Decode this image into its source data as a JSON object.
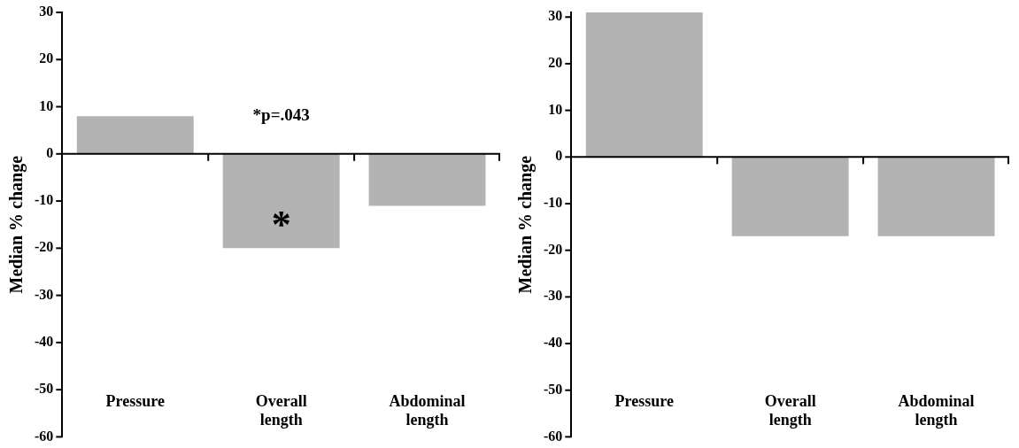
{
  "chart_data": [
    {
      "type": "bar",
      "ylabel": "Median % change",
      "categories": [
        "Pressure",
        "Overall length",
        "Abdominal length"
      ],
      "values": [
        8,
        -20,
        -11
      ],
      "color": "#b3b3b3",
      "ylim": [
        -60,
        30
      ],
      "yticks": [
        -60,
        -50,
        -40,
        -30,
        -20,
        -10,
        0,
        10,
        20,
        30
      ],
      "legend": false,
      "annotations": [
        "*p=.043",
        "*"
      ]
    },
    {
      "type": "bar",
      "ylabel": "Median % change",
      "categories": [
        "Pressure",
        "Overall length",
        "Abdominal length"
      ],
      "values": [
        31,
        -17,
        -17
      ],
      "color": "#b3b3b3",
      "ylim": [
        -60,
        31
      ],
      "yticks": [
        -60,
        -50,
        -40,
        -30,
        -20,
        -10,
        0,
        10,
        20,
        30
      ],
      "legend": false
    }
  ]
}
